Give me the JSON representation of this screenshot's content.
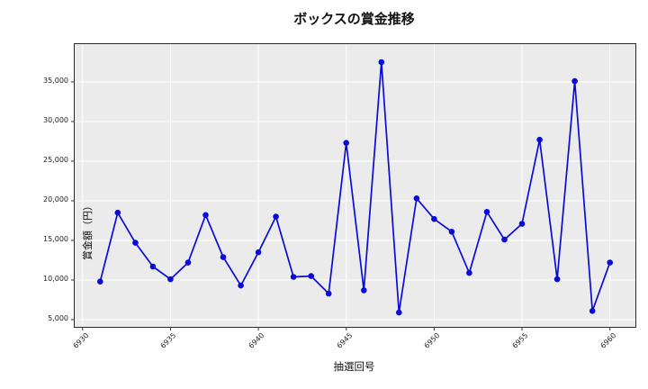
{
  "title": "ボックスの賞金推移",
  "chart_data": {
    "type": "line",
    "title": "ボックスの賞金推移",
    "xlabel": "抽選回号",
    "ylabel": "賞金額（円）",
    "x": [
      6931,
      6932,
      6933,
      6934,
      6935,
      6936,
      6937,
      6938,
      6939,
      6940,
      6941,
      6942,
      6943,
      6944,
      6945,
      6946,
      6947,
      6948,
      6949,
      6950,
      6951,
      6952,
      6953,
      6954,
      6955,
      6956,
      6957,
      6958,
      6959,
      6960
    ],
    "values": [
      9800,
      18500,
      14700,
      11700,
      10100,
      12200,
      18200,
      12900,
      9300,
      13500,
      18000,
      10400,
      10500,
      8300,
      27300,
      8700,
      37500,
      5900,
      20300,
      17700,
      16100,
      10900,
      18600,
      15100,
      17100,
      27700,
      10100,
      35100,
      6100,
      12200
    ],
    "xticks": [
      6930,
      6935,
      6940,
      6945,
      6950,
      6955,
      6960
    ],
    "yticks": [
      5000,
      10000,
      15000,
      20000,
      25000,
      30000,
      35000
    ],
    "xlim": [
      6929.55,
      6961.45
    ],
    "ylim": [
      4090,
      39770
    ],
    "grid": true,
    "legend_position": "none",
    "line_color": "#0b0bd8",
    "marker": "circle",
    "plot_bg": "#ebebeb",
    "grid_color": "#ffffff",
    "tick_color": "#333333"
  }
}
